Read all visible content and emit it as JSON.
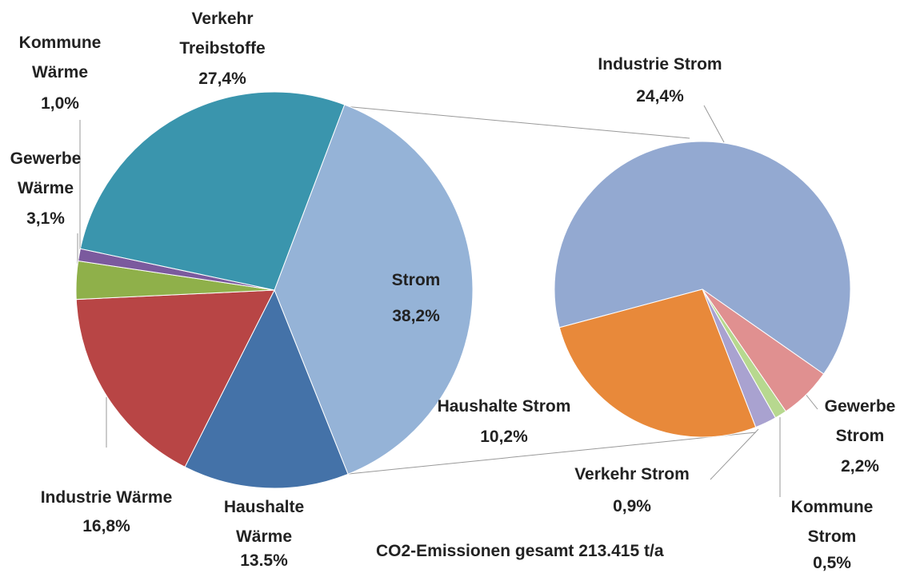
{
  "caption": "CO2-Emissionen gesamt 213.415 t/a",
  "chart_data": [
    {
      "type": "pie",
      "categories": [
        "Strom",
        "Haushalte Wärme",
        "Industrie Wärme",
        "Gewerbe Wärme",
        "Kommune Wärme",
        "Verkehr Treibstoffe"
      ],
      "values": [
        38.2,
        13.5,
        16.8,
        3.1,
        1.0,
        27.4
      ],
      "value_labels": [
        "38,2%",
        "13.5%",
        "16,8%",
        "3,1%",
        "1,0%",
        "27,4%"
      ],
      "colors": [
        "#95b3d7",
        "#4472a8",
        "#b84545",
        "#8fb04a",
        "#7b5a9e",
        "#3a95ad"
      ]
    },
    {
      "type": "pie",
      "categories": [
        "Industrie Strom",
        "Gewerbe Strom",
        "Kommune Strom",
        "Verkehr Strom",
        "Haushalte Strom"
      ],
      "values": [
        24.4,
        2.2,
        0.5,
        0.9,
        10.2
      ],
      "value_labels": [
        "24,4%",
        "2,2%",
        "0,5%",
        "0,9%",
        "10,2%"
      ],
      "colors": [
        "#93a9d1",
        "#e09090",
        "#b7d88f",
        "#a9a2d0",
        "#e8893a"
      ]
    }
  ]
}
